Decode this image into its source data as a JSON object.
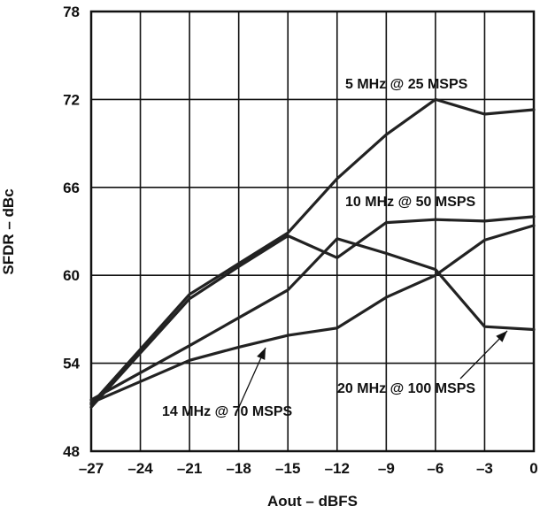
{
  "chart_data": {
    "type": "line",
    "xlabel": "Aout – dBFS",
    "ylabel": "SFDR – dBc",
    "xlim": [
      -27,
      0
    ],
    "ylim": [
      48,
      78
    ],
    "x_ticks": [
      "–27",
      "–24",
      "–21",
      "–18",
      "–15",
      "–12",
      "–9",
      "–6",
      "–3",
      "0"
    ],
    "y_ticks": [
      "48",
      "54",
      "60",
      "66",
      "72",
      "78"
    ],
    "grid": true,
    "series": [
      {
        "name": "5 MHz @ 25 MSPS",
        "x": [
          -27,
          -21,
          -18,
          -15,
          -12,
          -9,
          -6,
          -3,
          0
        ],
        "y": [
          51.2,
          58.7,
          60.8,
          62.9,
          66.6,
          69.6,
          72.0,
          71.0,
          71.3
        ]
      },
      {
        "name": "10 MHz @ 50 MSPS",
        "x": [
          -27,
          -21,
          -18,
          -15,
          -12,
          -9,
          -6,
          -3,
          0
        ],
        "y": [
          51.0,
          58.4,
          60.6,
          62.7,
          61.2,
          63.6,
          63.8,
          63.7,
          64.0
        ]
      },
      {
        "name": "14 MHz @ 70 MSPS",
        "x": [
          -27,
          -21,
          -18,
          -15,
          -12,
          -9,
          -6,
          -3,
          0
        ],
        "y": [
          51.3,
          54.2,
          55.1,
          55.9,
          56.4,
          58.5,
          60.0,
          62.4,
          63.4
        ]
      },
      {
        "name": "20 MHz @ 100 MSPS",
        "x": [
          -27,
          -21,
          -18,
          -15,
          -12,
          -9,
          -6,
          -3,
          0
        ],
        "y": [
          51.5,
          55.2,
          57.1,
          59.0,
          62.5,
          61.5,
          60.4,
          56.5,
          56.3
        ]
      }
    ],
    "annotations": [
      {
        "text": "5 MHz @ 25 MSPS"
      },
      {
        "text": "10 MHz @ 50 MSPS"
      },
      {
        "text": "20 MHz @ 100 MSPS"
      },
      {
        "text": "14 MHz @ 70 MSPS"
      }
    ]
  }
}
